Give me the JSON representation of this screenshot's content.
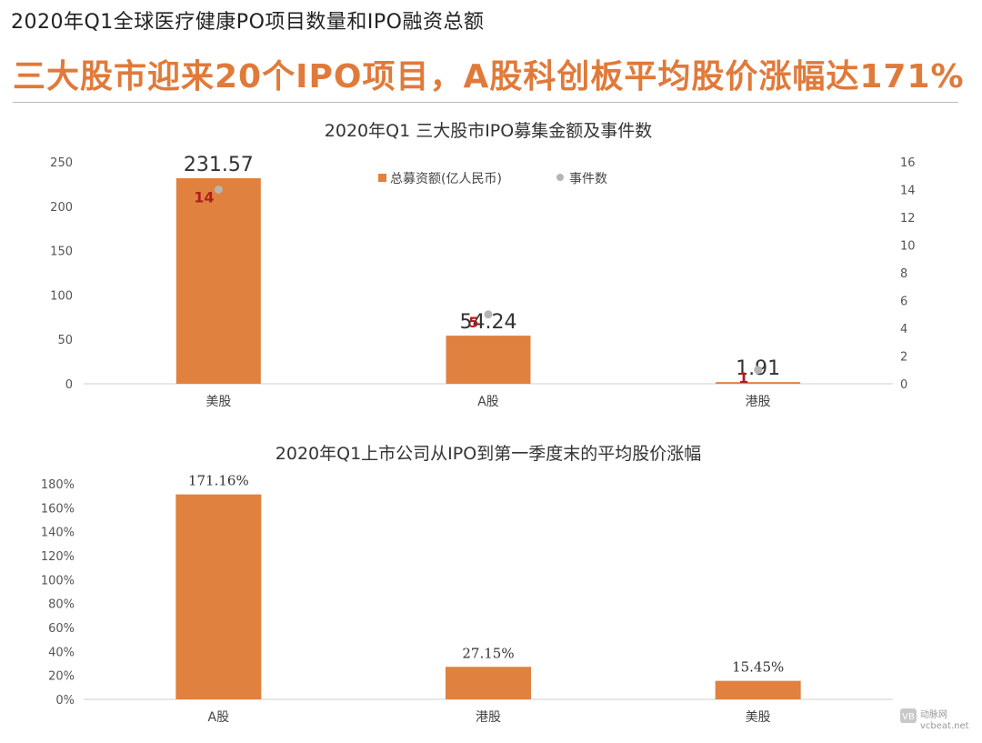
{
  "header": {
    "title": "2020年Q1全球医疗健康PO项目数量和IPO融资总额",
    "headline": "三大股市迎来20个IPO项目，A股科创板平均股价涨幅达171%"
  },
  "colors": {
    "bar": "#e0813f",
    "dot": "#b5b5b5",
    "count_label": "#b01e1e",
    "headline": "#e07a3a"
  },
  "chart_data": [
    {
      "type": "bar",
      "title": "2020年Q1 三大股市IPO募集金额及事件数",
      "categories": [
        "美股",
        "A股",
        "港股"
      ],
      "series": [
        {
          "name": "总募资额(亿人民币)",
          "axis": "left",
          "values": [
            231.57,
            54.24,
            1.91
          ],
          "value_labels": [
            "231.57",
            "54.24",
            "1.91"
          ]
        },
        {
          "name": "事件数",
          "axis": "right",
          "type": "scatter",
          "values": [
            14,
            5,
            1
          ],
          "value_labels": [
            "14",
            "5",
            "1"
          ]
        }
      ],
      "ylim": [
        0,
        250
      ],
      "yticks": [
        "0",
        "50",
        "100",
        "150",
        "200",
        "250"
      ],
      "y2lim": [
        0,
        16
      ],
      "y2ticks": [
        "0",
        "2",
        "4",
        "6",
        "8",
        "10",
        "12",
        "14",
        "16"
      ],
      "legend_position": "top-center"
    },
    {
      "type": "bar",
      "title": "2020年Q1上市公司从IPO到第一季度末的平均股价涨幅",
      "categories": [
        "A股",
        "港股",
        "美股"
      ],
      "values": [
        171.16,
        27.15,
        15.45
      ],
      "value_labels": [
        "171.16%",
        "27.15%",
        "15.45%"
      ],
      "ylim": [
        0,
        180
      ],
      "yticks": [
        "0%",
        "20%",
        "40%",
        "60%",
        "80%",
        "100%",
        "120%",
        "140%",
        "160%",
        "180%"
      ]
    }
  ],
  "watermark": {
    "logo": "VB",
    "line1": "动脉网",
    "line2": "vcbeat.net"
  }
}
